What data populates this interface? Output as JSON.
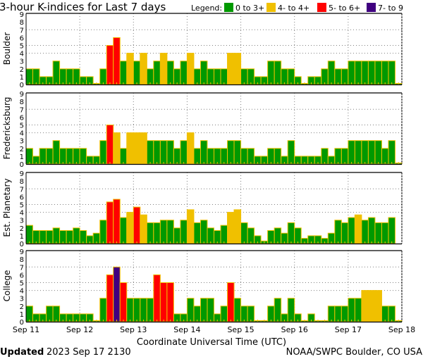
{
  "chart_data": {
    "type": "bar",
    "title": "3-hour K-indices for Last 7 days",
    "legend": {
      "label": "Legend:",
      "entries": [
        {
          "label": "0 to 3+",
          "color": "#009900"
        },
        {
          "label": "4- to 4+",
          "color": "#f0c000"
        },
        {
          "label": "5- to 6+",
          "color": "#ff0000"
        },
        {
          "label": "7- to 9",
          "color": "#400080"
        }
      ],
      "placement": "top-right"
    },
    "xlabel": "Coordinate Universal Time (UTC)",
    "x_ticks": [
      "Sep 11",
      "Sep 12",
      "Sep 13",
      "Sep 14",
      "Sep 15",
      "Sep 16",
      "Sep 17",
      "Sep 18"
    ],
    "y_ticks": [
      "0",
      "1",
      "2",
      "3",
      "4",
      "5",
      "6",
      "7",
      "8",
      "9"
    ],
    "ylim": [
      0,
      9
    ],
    "grid_y": [
      4,
      5,
      7
    ],
    "bars_per_day": 8,
    "panels": [
      {
        "name": "Boulder",
        "values": [
          2,
          2,
          1,
          1,
          3,
          2,
          2,
          2,
          1,
          1,
          0,
          2,
          5,
          6,
          3,
          4,
          3,
          4,
          2,
          3,
          4,
          3,
          2,
          3,
          4,
          2,
          3,
          2,
          2,
          2,
          4,
          4,
          2,
          2,
          1,
          1,
          3,
          3,
          2,
          2,
          1,
          0,
          1,
          1,
          2,
          3,
          2,
          2,
          3,
          3,
          3,
          3,
          3,
          3,
          3,
          0
        ]
      },
      {
        "name": "Fredericksburg",
        "values": [
          2,
          1,
          2,
          2,
          3,
          2,
          2,
          2,
          2,
          1,
          1,
          3,
          5,
          4,
          2,
          4,
          4,
          4,
          3,
          3,
          3,
          3,
          2,
          3,
          4,
          2,
          3,
          2,
          2,
          2,
          3,
          3,
          2,
          2,
          1,
          1,
          2,
          2,
          1,
          3,
          1,
          1,
          1,
          1,
          2,
          1,
          2,
          2,
          3,
          3,
          3,
          3,
          3,
          2,
          3,
          0
        ]
      },
      {
        "name": "Est. Planetary",
        "values": [
          2.33,
          1.67,
          1.67,
          1.67,
          2,
          1.67,
          1.67,
          2,
          1.67,
          1,
          1.33,
          3,
          5.33,
          5.67,
          3.33,
          4,
          4.67,
          3.67,
          2.67,
          2.67,
          3,
          3,
          2,
          3,
          4.33,
          2.67,
          3,
          2,
          1.67,
          2.33,
          4,
          4.33,
          2.67,
          2,
          1,
          0.33,
          1.67,
          2,
          1.33,
          2.67,
          2,
          0.67,
          1,
          1,
          0.67,
          1.33,
          3,
          2.67,
          3.33,
          3.67,
          3,
          3.33,
          2.67,
          2.67,
          3.33,
          null
        ]
      },
      {
        "name": "College",
        "values": [
          2,
          1,
          1,
          2,
          2,
          1,
          1,
          1,
          1,
          1,
          0,
          3,
          6,
          7,
          5,
          3,
          3,
          3,
          3,
          6,
          5,
          5,
          1,
          1,
          3,
          2,
          3,
          3,
          1,
          2,
          5,
          3,
          2,
          2,
          0,
          0,
          2,
          3,
          1,
          3,
          1,
          0,
          1,
          0,
          0,
          2,
          2,
          2,
          3,
          3,
          4,
          4,
          4,
          2,
          2,
          0
        ]
      }
    ]
  },
  "footer": {
    "updated_label": "Updated",
    "updated_value": "2023 Sep 17 2130",
    "credit": "NOAA/SWPC Boulder, CO USA"
  },
  "colors": {
    "outline": "#f0c000",
    "grid": "#808080"
  }
}
